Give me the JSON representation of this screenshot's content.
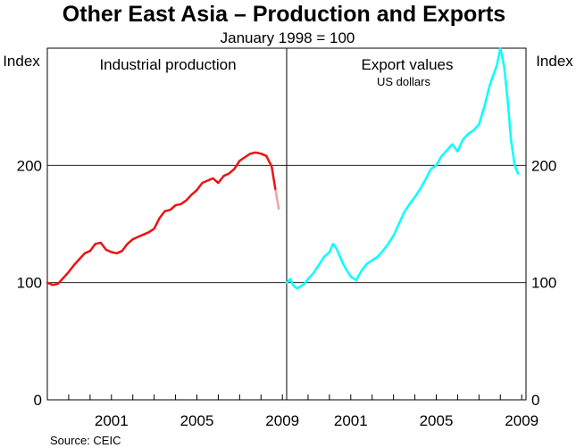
{
  "chart_data": {
    "type": "line",
    "title": "Other East Asia – Production and Exports",
    "subtitle": "January 1998 = 100",
    "y_unit_left": "Index",
    "y_unit_right": "Index",
    "ylim": [
      0,
      300
    ],
    "yticks": [
      "0",
      "100",
      "200"
    ],
    "ytick_values": [
      0,
      100,
      200
    ],
    "grid": true,
    "source": "Source: CEIC",
    "panels": [
      {
        "title": "Industrial production",
        "note": "",
        "xticks": [
          "2001",
          "2005",
          "2009"
        ],
        "xtick_values": [
          2001,
          2005,
          2009
        ],
        "xlim": [
          1998,
          2009.2
        ],
        "series": [
          {
            "color": "#ee1111",
            "x": [
              1998.0,
              1998.25,
              1998.5,
              1998.75,
              1999.0,
              1999.25,
              1999.5,
              1999.75,
              2000.0,
              2000.25,
              2000.5,
              2000.75,
              2001.0,
              2001.25,
              2001.5,
              2001.75,
              2002.0,
              2002.25,
              2002.5,
              2002.75,
              2003.0,
              2003.25,
              2003.5,
              2003.75,
              2004.0,
              2004.25,
              2004.5,
              2004.75,
              2005.0,
              2005.25,
              2005.5,
              2005.75,
              2006.0,
              2006.25,
              2006.5,
              2006.75,
              2007.0,
              2007.25,
              2007.5,
              2007.75,
              2008.0,
              2008.25,
              2008.5,
              2008.67,
              2008.83
            ],
            "y": [
              100,
              98,
              99,
              104,
              109,
              115,
              120,
              125,
              127,
              133,
              134,
              128,
              126,
              125,
              127,
              133,
              137,
              139,
              141,
              143,
              146,
              155,
              161,
              162,
              166,
              167,
              170,
              175,
              179,
              185,
              187,
              189,
              185,
              191,
              193,
              197,
              204,
              207,
              210,
              211,
              210,
              208,
              199,
              180,
              163
            ],
            "faded_from_index": 43
          }
        ]
      },
      {
        "title": "Export values",
        "note": "US dollars",
        "xticks": [
          "2001",
          "2005",
          "2009"
        ],
        "xtick_values": [
          2001,
          2005,
          2009
        ],
        "xlim": [
          1998,
          2009.2
        ],
        "series": [
          {
            "color": "#00ffff",
            "x": [
              1998.0,
              1998.17,
              1998.33,
              1998.5,
              1998.67,
              1998.83,
              1999.0,
              1999.25,
              1999.5,
              1999.75,
              2000.0,
              2000.17,
              2000.33,
              2000.5,
              2000.67,
              2000.83,
              2001.0,
              2001.25,
              2001.5,
              2001.75,
              2002.0,
              2002.25,
              2002.5,
              2002.75,
              2003.0,
              2003.25,
              2003.5,
              2003.75,
              2004.0,
              2004.25,
              2004.5,
              2004.75,
              2005.0,
              2005.25,
              2005.5,
              2005.75,
              2006.0,
              2006.25,
              2006.5,
              2006.75,
              2007.0,
              2007.25,
              2007.5,
              2007.67,
              2007.83,
              2008.0,
              2008.17,
              2008.33,
              2008.5,
              2008.67,
              2008.83
            ],
            "y": [
              100,
              103,
              97,
              95,
              97,
              99,
              103,
              108,
              115,
              122,
              126,
              133,
              129,
              122,
              115,
              110,
              105,
              102,
              110,
              116,
              119,
              122,
              127,
              133,
              140,
              150,
              160,
              167,
              173,
              180,
              188,
              197,
              200,
              208,
              213,
              218,
              212,
              222,
              227,
              230,
              235,
              250,
              268,
              277,
              285,
              300,
              285,
              258,
              222,
              200,
              193
            ]
          }
        ]
      }
    ]
  }
}
